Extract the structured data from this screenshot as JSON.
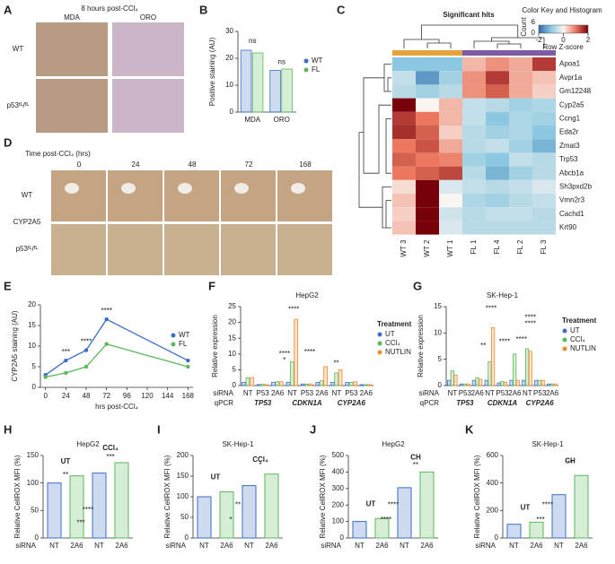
{
  "micrographs": {
    "A": {
      "letter": "A",
      "title": "8 hours post-CCl₄",
      "columns": [
        "MDA",
        "ORO"
      ],
      "rows": [
        "WT",
        "p53ᶠᴸ/ᶠᴸ"
      ]
    },
    "D": {
      "letter": "D",
      "title": "Time post-CCl₄ (hrs)",
      "columns": [
        "0",
        "24",
        "48",
        "72",
        "168"
      ],
      "rows": [
        "WT",
        "p53ᶠᴸ/ᶠᴸ"
      ],
      "stain": "CYP2A5"
    }
  },
  "chart_data": [
    {
      "letter": "B",
      "type": "bar",
      "ylabel": "Positive staining (AU)",
      "categories": [
        "MDA",
        "ORO"
      ],
      "series": [
        {
          "name": "WT",
          "color": "#3b6fc7",
          "values": [
            23,
            15.5
          ]
        },
        {
          "name": "FL",
          "color": "#5cb85c",
          "values": [
            22,
            16
          ]
        }
      ],
      "ylim": [
        0,
        30
      ],
      "yticks": [
        0,
        10,
        20,
        30
      ],
      "annotations": [
        "ns",
        "ns"
      ]
    },
    {
      "letter": "C",
      "type": "heatmap",
      "title": "Significant hits",
      "key_title": "Color Key and Histogram",
      "key_label": "Row Z-score",
      "count_label": "Count",
      "count_ticks": [
        0,
        6
      ],
      "zlim": [
        -2,
        2
      ],
      "zticks": [
        -2,
        0,
        2
      ],
      "columns": [
        "WT 3",
        "WT 2",
        "WT 1",
        "FL 1",
        "FL 4",
        "FL 2",
        "FL 3"
      ],
      "column_colors": [
        "#e8a33d",
        "#e8a33d",
        "#e8a33d",
        "#7d5ba6",
        "#7d5ba6",
        "#7d5ba6",
        "#7d5ba6"
      ],
      "rows": [
        "Apoa1",
        "Avpr1a",
        "Gm12248",
        "Cyp2a5",
        "Ccng1",
        "Eda2r",
        "Zmat3",
        "Trp53",
        "Abcb1a",
        "Sh3pxd2b",
        "Vmn2r3",
        "Cachd1",
        "Krt90"
      ],
      "values": [
        [
          -1,
          -1,
          -1,
          0.5,
          0.8,
          0.6,
          1.5
        ],
        [
          -0.5,
          -1.5,
          -0.8,
          0.8,
          1.5,
          0.6,
          0.4
        ],
        [
          -0.6,
          -0.8,
          -0.6,
          0.8,
          1.2,
          0.6,
          0.3
        ],
        [
          2.2,
          0,
          0.5,
          -0.5,
          -0.6,
          -0.8,
          -0.7
        ],
        [
          1.5,
          1,
          0.5,
          -0.5,
          -1,
          -0.7,
          -0.8
        ],
        [
          1.6,
          1.2,
          0.3,
          -0.6,
          -0.8,
          -0.7,
          -1
        ],
        [
          1,
          1.3,
          0.6,
          -0.6,
          -0.5,
          -0.8,
          -1.2
        ],
        [
          1.2,
          1,
          0.9,
          -0.8,
          -1,
          -0.5,
          -0.6
        ],
        [
          1,
          1.2,
          1.4,
          -0.6,
          -1.2,
          -0.8,
          -0.6
        ],
        [
          0.2,
          2,
          -0.3,
          -0.5,
          -0.6,
          -0.5,
          -0.3
        ],
        [
          0.4,
          2.2,
          0,
          -0.7,
          -0.8,
          -0.6,
          -0.5
        ],
        [
          0.3,
          2.2,
          -0.4,
          -0.6,
          -0.5,
          -0.5,
          -0.6
        ],
        [
          0.4,
          2.3,
          -0.3,
          -0.6,
          -0.6,
          -0.6,
          -0.6
        ]
      ]
    },
    {
      "letter": "E",
      "type": "line",
      "xlabel": "hrs post-CCl₄",
      "ylabel": "CYP2A5 staining (AU)",
      "x": [
        0,
        24,
        48,
        72,
        168
      ],
      "series": [
        {
          "name": "WT",
          "color": "#3b6fc7",
          "values": [
            3,
            6.5,
            9,
            16.5,
            6.5
          ]
        },
        {
          "name": "FL",
          "color": "#5cb85c",
          "values": [
            2.5,
            3.5,
            5,
            10.5,
            5
          ]
        }
      ],
      "xlim": [
        -6,
        174
      ],
      "xticks": [
        0,
        24,
        48,
        72,
        96,
        120,
        144,
        168
      ],
      "ylim": [
        0,
        20
      ],
      "yticks": [
        0,
        5,
        10,
        15,
        20
      ],
      "annotations": [
        "***",
        "****",
        "****"
      ]
    },
    {
      "letter": "F",
      "type": "bar",
      "title": "HepG2",
      "ylabel": "Relative expression",
      "category_label": "siRNA",
      "group_label": "qPCR",
      "categories": [
        "NT",
        "P53",
        "2A6",
        "NT",
        "P53",
        "2A6",
        "NT",
        "P53",
        "2A6"
      ],
      "groups": [
        "TP53",
        "CDKN1A",
        "CYP2A6"
      ],
      "legend_title": "Treatment",
      "series": [
        {
          "name": "UT",
          "color": "#3b6fc7",
          "values": [
            1,
            0.3,
            1,
            1,
            0.5,
            1,
            1,
            1,
            0.3
          ]
        },
        {
          "name": "CCl₄",
          "color": "#5cb85c",
          "values": [
            2.5,
            0.4,
            1.2,
            7.5,
            0.5,
            1.5,
            4,
            1,
            0.3
          ]
        },
        {
          "name": "NUTLIN",
          "color": "#f08a2b",
          "values": [
            2.5,
            0.3,
            1.2,
            21,
            0.5,
            6,
            5,
            1.2,
            0.3
          ]
        }
      ],
      "ylim": [
        0,
        25
      ],
      "yticks": [
        0,
        5,
        10,
        15,
        20,
        25
      ],
      "annotations": [
        "****",
        "****",
        "****",
        "**",
        "*"
      ]
    },
    {
      "letter": "G",
      "type": "bar",
      "title": "SK-Hep-1",
      "ylabel": "Relative expression",
      "category_label": "siRNA",
      "group_label": "qPCR",
      "categories": [
        "NT",
        "P53",
        "2A6",
        "NT",
        "P53",
        "2A6",
        "NT",
        "P53",
        "2A6"
      ],
      "groups": [
        "TP53",
        "CDKN1A",
        "CYP2A6"
      ],
      "legend_title": "Treatment",
      "series": [
        {
          "name": "UT",
          "color": "#3b6fc7",
          "values": [
            1,
            0.3,
            1,
            1,
            0.5,
            1,
            1,
            1,
            0.3
          ]
        },
        {
          "name": "CCl₄",
          "color": "#5cb85c",
          "values": [
            2.8,
            0.3,
            1.5,
            4.5,
            0.8,
            6,
            7,
            1,
            0.3
          ]
        },
        {
          "name": "NUTLIN",
          "color": "#f08a2b",
          "values": [
            2,
            0.3,
            1.2,
            11,
            0.6,
            1,
            6.5,
            1,
            0.3
          ]
        }
      ],
      "ylim": [
        0,
        15
      ],
      "yticks": [
        0,
        5,
        10,
        15
      ],
      "annotations": [
        "****",
        "**",
        "****",
        "****",
        "****",
        "****"
      ]
    },
    {
      "letter": "H",
      "type": "bar",
      "title": "HepG2",
      "ylabel": "Relative CellROX MFI (%)",
      "category_label": "siRNA",
      "categories": [
        "NT",
        "2A6",
        "NT",
        "2A6"
      ],
      "groups": [
        "UT",
        "CCl₄"
      ],
      "values": [
        100,
        113,
        118,
        137
      ],
      "colors": [
        "#3b6fc7",
        "#5cb85c",
        "#3b6fc7",
        "#5cb85c"
      ],
      "ylim": [
        0,
        150
      ],
      "yticks": [
        0,
        50,
        100,
        150
      ],
      "annotations": [
        "**",
        "***",
        "****",
        "***"
      ]
    },
    {
      "letter": "I",
      "type": "bar",
      "title": "SK-Hep-1",
      "ylabel": "Relative CellROX MFI (%)",
      "category_label": "siRNA",
      "categories": [
        "NT",
        "2A6",
        "NT",
        "2A6"
      ],
      "groups": [
        "UT",
        "CCl₄"
      ],
      "values": [
        100,
        112,
        127,
        155
      ],
      "colors": [
        "#3b6fc7",
        "#5cb85c",
        "#3b6fc7",
        "#5cb85c"
      ],
      "ylim": [
        0,
        200
      ],
      "yticks": [
        0,
        50,
        100,
        150,
        200
      ],
      "annotations": [
        "*",
        "**",
        "*"
      ]
    },
    {
      "letter": "J",
      "type": "bar",
      "title": "HepG2",
      "ylabel": "Relative CellROX MFI (%)",
      "category_label": "siRNA",
      "categories": [
        "NT",
        "2A6",
        "NT",
        "2A6"
      ],
      "groups": [
        "UT",
        "CH"
      ],
      "values": [
        100,
        118,
        305,
        400
      ],
      "colors": [
        "#3b6fc7",
        "#5cb85c",
        "#3b6fc7",
        "#5cb85c"
      ],
      "ylim": [
        0,
        500
      ],
      "yticks": [
        0,
        100,
        200,
        300,
        400,
        500
      ],
      "annotations": [
        "**",
        "****",
        "****"
      ]
    },
    {
      "letter": "K",
      "type": "bar",
      "title": "SK-Hep-1",
      "ylabel": "Relative CellROX MFI (%)",
      "category_label": "siRNA",
      "categories": [
        "NT",
        "2A6",
        "NT",
        "2A6"
      ],
      "groups": [
        "UT",
        "CH"
      ],
      "values": [
        100,
        115,
        315,
        455
      ],
      "colors": [
        "#3b6fc7",
        "#5cb85c",
        "#3b6fc7",
        "#5cb85c"
      ],
      "ylim": [
        0,
        600
      ],
      "yticks": [
        0,
        200,
        400,
        600
      ],
      "annotations": [
        "**",
        "****",
        "***"
      ]
    }
  ]
}
